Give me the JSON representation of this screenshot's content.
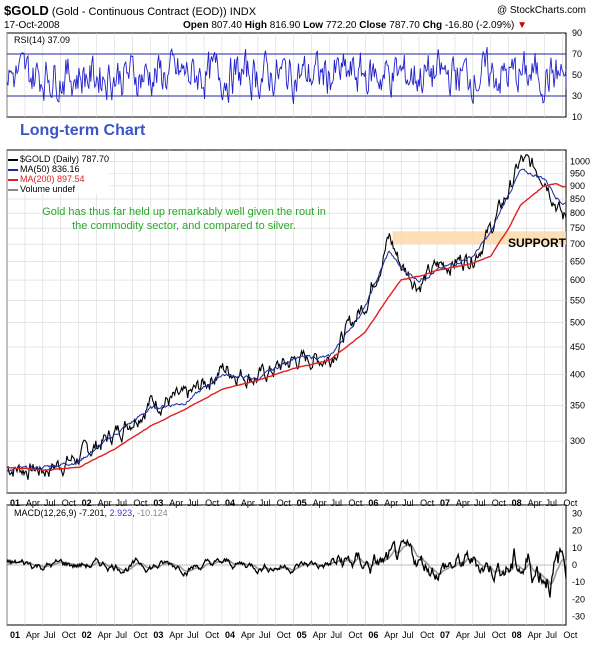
{
  "header": {
    "symbol": "$GOLD",
    "name": "(Gold - Continuous Contract (EOD))",
    "exchange": "INDX",
    "date": "17-Oct-2008",
    "watermark": "@ StockCharts.com",
    "open_label": "Open",
    "open": "807.40",
    "high_label": "High",
    "high": "816.90",
    "low_label": "Low",
    "low": "772.20",
    "close_label": "Close",
    "close": "787.70",
    "chg_label": "Chg",
    "chg": "-16.80 (-2.09%)"
  },
  "rsi": {
    "label": "RSI(14) 37.09",
    "ticks": [
      "90",
      "70",
      "50",
      "30",
      "10"
    ]
  },
  "price_panel": {
    "title": "Long-term Chart",
    "legend": [
      {
        "text": "$GOLD (Daily) 787.70",
        "color": "#000000"
      },
      {
        "text": "MA(50) 836.16",
        "color": "#1a2a9a"
      },
      {
        "text": "MA(200) 897.54",
        "color": "#e02020"
      },
      {
        "text": "Volume undef",
        "color": "#000000"
      }
    ],
    "annotation": "Gold has thus far held up remarkably well given the rout in the commodity sector, and compared to silver.",
    "support_label": "SUPPORT",
    "y_ticks": [
      "1000",
      "950",
      "900",
      "850",
      "800",
      "750",
      "700",
      "650",
      "600",
      "550",
      "500",
      "450",
      "400",
      "350",
      "300"
    ]
  },
  "macd": {
    "label_main": "MACD(12,26,9) -7.201",
    "label_signal": "2.923",
    "label_hist": "-10.124",
    "ticks": [
      "30",
      "20",
      "10",
      "0",
      "-10",
      "-20",
      "-30"
    ]
  },
  "x_axis": {
    "labels": [
      "01",
      "Apr",
      "Jul",
      "Oct",
      "02",
      "Apr",
      "Jul",
      "Oct",
      "03",
      "Apr",
      "Jul",
      "Oct",
      "04",
      "Apr",
      "Jul",
      "Oct",
      "05",
      "Apr",
      "Jul",
      "Oct",
      "06",
      "Apr",
      "Jul",
      "Oct",
      "07",
      "Apr",
      "Jul",
      "Oct",
      "08",
      "Apr",
      "Jul",
      "Oct"
    ]
  },
  "colors": {
    "rsi_line": "#2222cc",
    "ma50": "#1a2a9a",
    "ma200": "#e02020",
    "price": "#000000",
    "support_band": "#fbd9a8",
    "annotation": "#2aa82a",
    "grid": "#d8d8d8"
  },
  "chart_data": {
    "type": "line",
    "title": "$GOLD (Gold - Continuous Contract (EOD))",
    "y_scale": "log",
    "ylim": [
      240,
      1050
    ],
    "x": [
      "2001-01",
      "2001-07",
      "2002-01",
      "2002-07",
      "2003-01",
      "2003-07",
      "2004-01",
      "2004-07",
      "2005-01",
      "2005-07",
      "2006-01",
      "2006-05",
      "2006-07",
      "2006-10",
      "2007-01",
      "2007-07",
      "2007-10",
      "2008-01",
      "2008-03",
      "2008-07",
      "2008-09",
      "2008-10"
    ],
    "series": [
      {
        "name": "$GOLD",
        "values": [
          268,
          265,
          280,
          310,
          355,
          360,
          410,
          395,
          425,
          430,
          545,
          720,
          640,
          590,
          635,
          665,
          745,
          880,
          1000,
          950,
          840,
          787.7
        ]
      },
      {
        "name": "MA(50)",
        "values": [
          265,
          268,
          275,
          308,
          345,
          355,
          400,
          392,
          430,
          430,
          535,
          680,
          630,
          600,
          625,
          665,
          735,
          870,
          960,
          930,
          860,
          836.16
        ]
      },
      {
        "name": "MA(200)",
        "values": [
          268,
          265,
          268,
          290,
          320,
          345,
          375,
          390,
          410,
          425,
          480,
          560,
          600,
          610,
          625,
          645,
          665,
          750,
          830,
          900,
          910,
          897.54
        ]
      }
    ],
    "support_range": [
      700,
      740
    ],
    "rsi": {
      "ylim": [
        10,
        90
      ],
      "levels": [
        70,
        30
      ],
      "last": 37.09
    },
    "macd": {
      "ylim": [
        -35,
        35
      ],
      "macd": -7.201,
      "signal": 2.923,
      "histogram": -10.124
    }
  }
}
